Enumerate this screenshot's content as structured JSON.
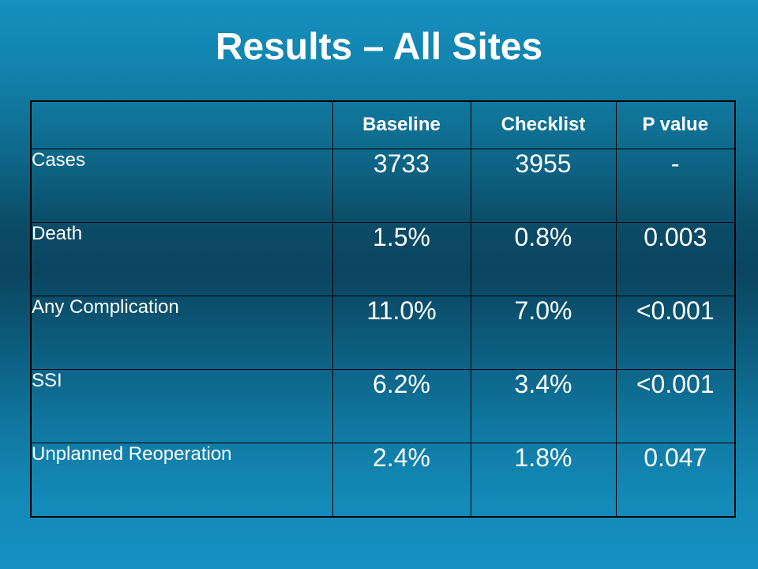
{
  "slide": {
    "title": "Results – All Sites"
  },
  "table": {
    "corner": "",
    "columns": [
      "Baseline",
      "Checklist",
      "P value"
    ],
    "rows": [
      {
        "label": "Cases",
        "values": [
          "3733",
          "3955",
          "-"
        ]
      },
      {
        "label": "Death",
        "values": [
          "1.5%",
          "0.8%",
          "0.003"
        ]
      },
      {
        "label": "Any Complication",
        "values": [
          "11.0%",
          "7.0%",
          "<0.001"
        ]
      },
      {
        "label": "SSI",
        "values": [
          "6.2%",
          "3.4%",
          "<0.001"
        ]
      },
      {
        "label": "Unplanned Reoperation",
        "values": [
          "2.4%",
          "1.8%",
          "0.047"
        ]
      }
    ]
  },
  "colors": {
    "text": "#ffffff",
    "grid": "#000000",
    "background_top": "#1590bf",
    "background_mid": "#0a4560"
  }
}
